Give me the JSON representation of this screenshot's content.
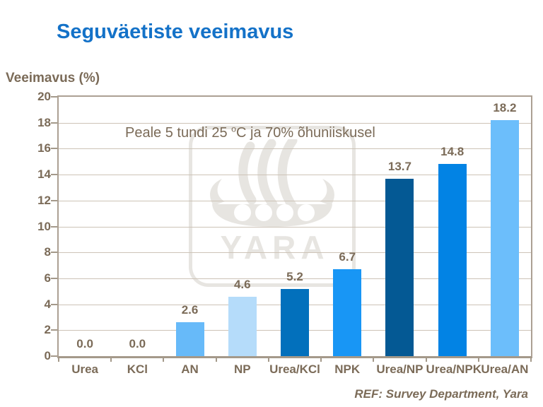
{
  "title": "Seguväetiste veeimavus",
  "y_axis_title": "Veeimavus (%)",
  "annotation": {
    "before_sup": "Peale 5 tundi 25 ",
    "sup": "o",
    "after_sup": "C ja 70% õhuniiskusel"
  },
  "footer": "REF: Survey Department, Yara",
  "watermark": {
    "icon": "yara-viking-ship-icon",
    "text": "YARA",
    "color": "#e7e5e1"
  },
  "colors": {
    "title": "#1472c8",
    "text": "#7b6b58",
    "gridline": "#cdc3b7",
    "axis_frame": "#aca093",
    "background": "#ffffff"
  },
  "chart_data": {
    "type": "bar",
    "title": "Seguväetiste veeimavus",
    "annotation": "Peale 5 tundi 25 °C ja 70% õhuniiskusel",
    "categories": [
      "Urea",
      "KCl",
      "AN",
      "NP",
      "Urea/KCl",
      "NPK",
      "Urea/NP",
      "Urea/NPK",
      "Urea/AN"
    ],
    "values": [
      0.0,
      0.0,
      2.6,
      4.6,
      5.2,
      6.7,
      13.7,
      14.8,
      18.2
    ],
    "value_labels": [
      "0.0",
      "0.0",
      "2.6",
      "4.6",
      "5.2",
      "6.7",
      "13.7",
      "14.8",
      "18.2"
    ],
    "bar_colors": [
      "#67baf9",
      "#67baf9",
      "#67baf9",
      "#b5dcfa",
      "#0270bc",
      "#1896f5",
      "#045994",
      "#0283e4",
      "#6cbefb"
    ],
    "xlabel": "",
    "ylabel": "Veeimavus (%)",
    "ylim": [
      0,
      20
    ],
    "ytick_step": 2,
    "grid": true,
    "legend": false
  }
}
